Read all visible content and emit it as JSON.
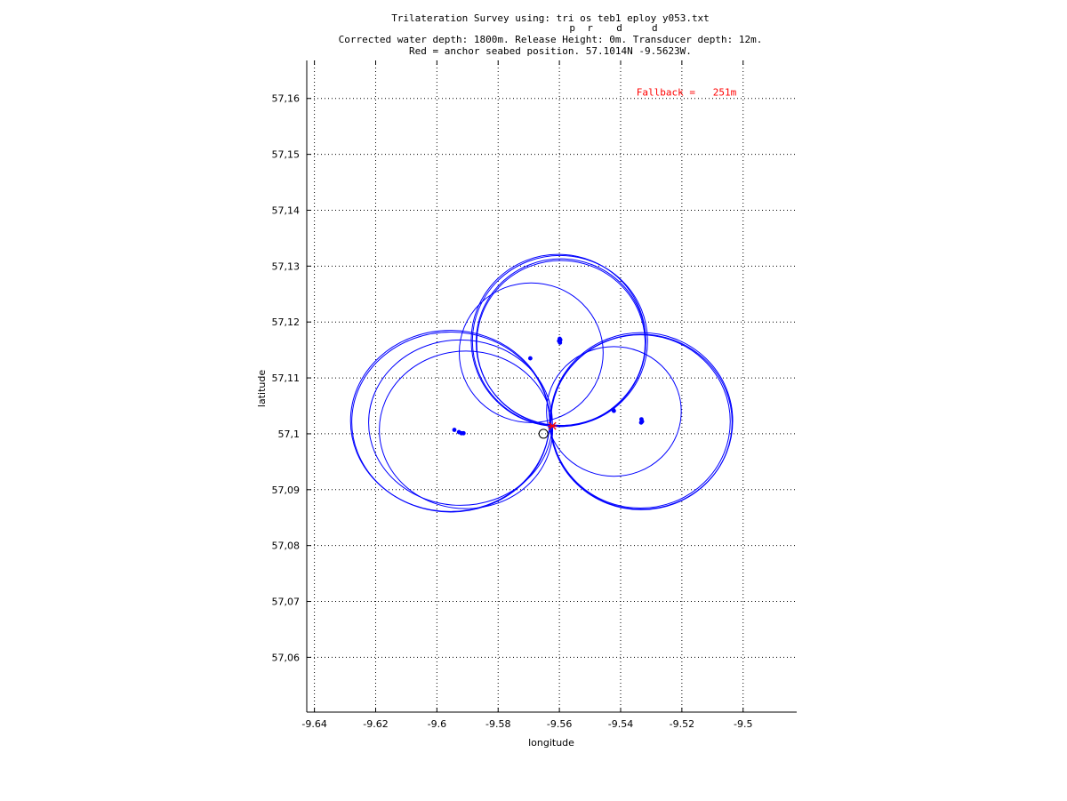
{
  "chart_data": {
    "type": "scatter",
    "title": [
      "Trilateration Survey using: tri os teb1 eploy y053.txt",
      "p  r    d     d",
      "Corrected water depth: 1800m. Release Height: 0m. Transducer depth: 12m.",
      "Red = anchor seabed position. 57.1014N -9.5623W."
    ],
    "xlabel": "longitude",
    "ylabel": "latitude",
    "xlim": [
      -9.6425,
      -9.4825
    ],
    "ylim": [
      57.0502,
      57.1668
    ],
    "grid": true,
    "x_ticks": [
      -9.64,
      -9.62,
      -9.6,
      -9.58,
      -9.56,
      -9.54,
      -9.52,
      -9.5
    ],
    "x_tick_labels": [
      "-9.64",
      "-9.62",
      "-9.6",
      "-9.58",
      "-9.56",
      "-9.54",
      "-9.52",
      "-9.5"
    ],
    "y_ticks": [
      57.06,
      57.07,
      57.08,
      57.09,
      57.1,
      57.11,
      57.12,
      57.13,
      57.14,
      57.15,
      57.16
    ],
    "y_tick_labels": [
      "57,06",
      "57,07",
      "57,08",
      "57,09",
      "57,1",
      "57,11",
      "57,12",
      "57,13",
      "57,14",
      "57,15",
      "57,16"
    ],
    "annotation": {
      "text": "Fallback =   251m",
      "color": "#ff0000",
      "x": -9.5185,
      "y": 57.1605
    },
    "circles": [
      {
        "cx": -9.5957,
        "cy": 57.1023,
        "r_lon": 0.0325,
        "r_lat": 0.0162,
        "color": "#0000ff"
      },
      {
        "cx": -9.5955,
        "cy": 57.1021,
        "r_lon": 0.0323,
        "r_lat": 0.0161,
        "color": "#0000ff"
      },
      {
        "cx": -9.5923,
        "cy": 57.102,
        "r_lon": 0.03,
        "r_lat": 0.0148,
        "color": "#0000ff"
      },
      {
        "cx": -9.5905,
        "cy": 57.1007,
        "r_lon": 0.0283,
        "r_lat": 0.0141,
        "color": "#0000ff"
      },
      {
        "cx": -9.5603,
        "cy": 57.1167,
        "r_lon": 0.0285,
        "r_lat": 0.0154,
        "color": "#0000ff"
      },
      {
        "cx": -9.5598,
        "cy": 57.1166,
        "r_lon": 0.0286,
        "r_lat": 0.0153,
        "color": "#0000ff"
      },
      {
        "cx": -9.5595,
        "cy": 57.1162,
        "r_lon": 0.0275,
        "r_lat": 0.0148,
        "color": "#0000ff"
      },
      {
        "cx": -9.5595,
        "cy": 57.1164,
        "r_lon": 0.0277,
        "r_lat": 0.0149,
        "color": "#0000ff"
      },
      {
        "cx": -9.5692,
        "cy": 57.1145,
        "r_lon": 0.0235,
        "r_lat": 0.0125,
        "color": "#0000ff"
      },
      {
        "cx": -9.5332,
        "cy": 57.1023,
        "r_lon": 0.0298,
        "r_lat": 0.0158,
        "color": "#0000ff"
      },
      {
        "cx": -9.5333,
        "cy": 57.1021,
        "r_lon": 0.0297,
        "r_lat": 0.0157,
        "color": "#0000ff"
      },
      {
        "cx": -9.5335,
        "cy": 57.1022,
        "r_lon": 0.0293,
        "r_lat": 0.0155,
        "color": "#0000ff"
      },
      {
        "cx": -9.5422,
        "cy": 57.104,
        "r_lon": 0.022,
        "r_lat": 0.0116,
        "color": "#0000ff"
      }
    ],
    "points": [
      {
        "x": -9.5943,
        "y": 57.1007
      },
      {
        "x": -9.5928,
        "y": 57.1003
      },
      {
        "x": -9.592,
        "y": 57.1001
      },
      {
        "x": -9.5913,
        "y": 57.1001
      },
      {
        "x": -9.5695,
        "y": 57.1135
      },
      {
        "x": -9.5599,
        "y": 57.117
      },
      {
        "x": -9.5601,
        "y": 57.1166
      },
      {
        "x": -9.5598,
        "y": 57.1163
      },
      {
        "x": -9.5597,
        "y": 57.1168
      },
      {
        "x": -9.5424,
        "y": 57.1043
      },
      {
        "x": -9.5422,
        "y": 57.1041
      },
      {
        "x": -9.5332,
        "y": 57.1026
      },
      {
        "x": -9.533,
        "y": 57.1022
      },
      {
        "x": -9.5333,
        "y": 57.102
      }
    ],
    "points_color": "#0000ff",
    "drop_position": {
      "x": -9.5652,
      "y": 57.1,
      "marker": "open-circle",
      "color": "#000000"
    },
    "anchor_position": {
      "x": -9.5623,
      "y": 57.1014,
      "marker": "cross",
      "color": "#ff0000"
    }
  }
}
